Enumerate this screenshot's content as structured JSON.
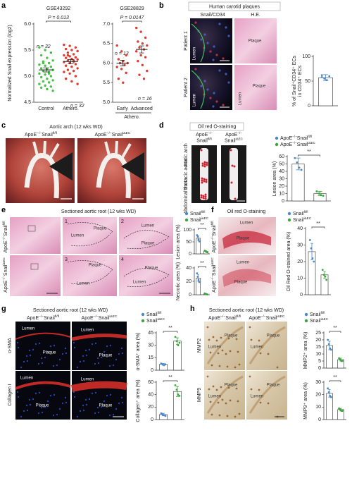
{
  "panel_letters": [
    "a",
    "b",
    "c",
    "d",
    "e",
    "f",
    "g",
    "h"
  ],
  "genotypes": {
    "apoe_fl": [
      "ApoE",
      "−/−",
      "Snail",
      "fl/fl"
    ],
    "apoe_iec": [
      "ApoE",
      "−/−",
      "Snail",
      "iΔEC"
    ],
    "snail_fl": [
      "Snail",
      "fl/fl"
    ],
    "snail_iec": [
      "Snail",
      "iΔEC"
    ]
  },
  "texts": {
    "human_plaques": "Human carotid plaques",
    "stain_snail": "Snail",
    "stain_cd34": "/CD34",
    "he": "H.E.",
    "patient1": "Patient 1",
    "patient2": "Patient 2",
    "lumen": "Lumen",
    "plaque": "Plaque",
    "aortic_arch_title": "Aortic arch (12 wks WD)",
    "oil_red": "Oil red O-staining",
    "aortic_arch": "Aortic arch",
    "thoracic": "Thoracic aorta",
    "abdominal": "Abdominal aorta",
    "root_title": "Sectioned aortic root (12 wks WD)",
    "sma": "α-SMA",
    "collagen": "Collagen I",
    "mmp2": "MMP2",
    "mmp9": "MMP9",
    "regions": [
      "1",
      "2",
      "3",
      "4"
    ]
  },
  "chart_data": [
    {
      "type": "dot",
      "title": "GSE43292",
      "annotation": "P = 0.013",
      "ylabel": "Normalized Snail expression (log2)",
      "categories": [
        "Control",
        "Athero."
      ],
      "n_labels": [
        "n = 32",
        "n = 32"
      ],
      "colors": [
        "#44c244",
        "#e03a2e"
      ],
      "points": [
        [
          5.55,
          5.5,
          5.45,
          5.4,
          5.35,
          5.3,
          5.28,
          5.25,
          5.22,
          5.2,
          5.18,
          5.15,
          5.13,
          5.12,
          5.1,
          5.08,
          5.05,
          5.03,
          5.0,
          4.98,
          4.95,
          4.92,
          4.9,
          4.88,
          4.85,
          4.82,
          4.8,
          4.78,
          4.75,
          4.72,
          5.25,
          5.05
        ],
        [
          5.6,
          5.58,
          5.55,
          5.52,
          5.5,
          5.48,
          5.45,
          5.42,
          5.4,
          5.38,
          5.36,
          5.35,
          5.33,
          5.32,
          5.3,
          5.28,
          5.27,
          5.25,
          5.23,
          5.2,
          5.18,
          5.15,
          5.12,
          5.1,
          5.08,
          5.05,
          5.0,
          4.95,
          4.9,
          4.85,
          5.4,
          5.3
        ]
      ],
      "means": [
        5.12,
        5.28
      ],
      "sems": [
        0.04,
        0.04
      ],
      "ylim": [
        4.5,
        6.0
      ],
      "yticks": [
        4.5,
        {
          "value": 5,
          "label": "5.0"
        },
        5.5,
        {
          "value": 6,
          "label": "6.0"
        }
      ]
    },
    {
      "type": "dot",
      "title": "GSE28829",
      "annotation": "P = 0.0147",
      "categories": [
        "Early",
        "Advanced"
      ],
      "group_label": "Athero.",
      "n_labels": [
        "n = 13",
        "n = 16"
      ],
      "colors": [
        "#e03a2e",
        "#e03a2e"
      ],
      "points": [
        [
          6.45,
          6.3,
          6.2,
          6.1,
          6.05,
          6.0,
          6.0,
          5.95,
          5.9,
          5.85,
          5.75,
          5.6,
          5.5
        ],
        [
          6.9,
          6.8,
          6.65,
          6.55,
          6.5,
          6.45,
          6.4,
          6.35,
          6.3,
          6.2,
          6.15,
          6.05,
          5.95,
          5.8,
          5.7,
          5.6
        ]
      ],
      "means": [
        6.0,
        6.35
      ],
      "sems": [
        0.07,
        0.09
      ],
      "ylim": [
        5,
        7
      ],
      "yticks": [
        {
          "value": 5,
          "label": "5.0"
        },
        5.5,
        {
          "value": 6,
          "label": "6.0"
        },
        6.5,
        {
          "value": 7,
          "label": "7.0"
        }
      ]
    },
    {
      "type": "bar",
      "ylabel": [
        "% of Snail⁺CD34⁺ ECs",
        "in CD34⁺ ECs"
      ],
      "values": [
        57
      ],
      "errors": [
        6
      ],
      "points": [
        [
          62,
          55,
          52,
          60,
          58
        ]
      ],
      "colors": [
        "#4b88c8"
      ],
      "ylim": [
        0,
        100
      ],
      "yticks": [
        0,
        50,
        100
      ]
    },
    {
      "type": "bar",
      "ylabel": "Lesion area (%)",
      "series_names": [
        [
          "ApoE",
          "−/−",
          "Snail",
          "fl/fl"
        ],
        [
          "ApoE",
          "−/−",
          "Snail",
          "iΔEC"
        ]
      ],
      "values": [
        50,
        10
      ],
      "errors": [
        8,
        3
      ],
      "points": [
        [
          58,
          52,
          45,
          42
        ],
        [
          13,
          10,
          8,
          7
        ]
      ],
      "colors": [
        "#4b88c8",
        "#3aa63a"
      ],
      "annotation": "**",
      "ylim": [
        0,
        60
      ],
      "yticks": [
        0,
        10,
        20,
        30,
        40,
        50,
        60
      ]
    },
    {
      "type": "bar",
      "ylabel": "Lesion area (%)",
      "series_names": [
        [
          "Snail",
          "fl/fl"
        ],
        [
          "Snail",
          "iΔEC"
        ]
      ],
      "values": [
        65,
        10
      ],
      "errors": [
        10,
        3
      ],
      "points": [
        [
          78,
          72,
          60,
          52
        ],
        [
          13,
          11,
          9,
          7
        ]
      ],
      "colors": [
        "#4b88c8",
        "#3aa63a"
      ],
      "annotation": "**",
      "ylim": [
        0,
        100
      ],
      "yticks": [
        0,
        50,
        100
      ]
    },
    {
      "type": "bar",
      "ylabel": "Necrotic area (%)",
      "values": [
        25,
        1
      ],
      "errors": [
        5,
        0.5
      ],
      "points": [
        [
          32,
          27,
          22,
          19
        ],
        [
          2,
          1,
          1,
          0.5
        ]
      ],
      "colors": [
        "#4b88c8",
        "#3aa63a"
      ],
      "annotation": "**",
      "ylim": [
        0,
        40
      ],
      "yticks": [
        0,
        20,
        40
      ]
    },
    {
      "type": "bar",
      "ylabel": "Oil Red O-stained area (%)",
      "series_names": [
        [
          "Snail",
          "fl/fl"
        ],
        [
          "Snail",
          "iΔEC"
        ]
      ],
      "values": [
        26,
        12
      ],
      "errors": [
        5,
        2
      ],
      "points": [
        [
          33,
          28,
          22,
          20
        ],
        [
          15,
          12,
          11,
          9
        ]
      ],
      "colors": [
        "#4b88c8",
        "#3aa63a"
      ],
      "annotation": "**",
      "ylim": [
        0,
        40
      ],
      "yticks": [
        0,
        10,
        20,
        30,
        40
      ]
    },
    {
      "type": "bar",
      "ylabel": "α-SMA⁺ area (%)",
      "series_names": [
        [
          "Snail",
          "fl/fl"
        ],
        [
          "Snail",
          "iΔEC"
        ]
      ],
      "values": [
        7,
        35
      ],
      "errors": [
        1,
        4
      ],
      "points": [
        [
          8,
          7,
          6,
          7
        ],
        [
          40,
          35,
          30,
          33
        ]
      ],
      "colors": [
        "#4b88c8",
        "#3aa63a"
      ],
      "annotation": "**",
      "ylim": [
        0,
        45
      ],
      "yticks": [
        0,
        15,
        30,
        45
      ]
    },
    {
      "type": "bar",
      "ylabel": "Collagen⁺ area (%)",
      "values": [
        8,
        45
      ],
      "errors": [
        2,
        8
      ],
      "points": [
        [
          10,
          8,
          7,
          6
        ],
        [
          55,
          48,
          40,
          38
        ]
      ],
      "colors": [
        "#4b88c8",
        "#3aa63a"
      ],
      "annotation": "**",
      "ylim": [
        0,
        60
      ],
      "yticks": [
        0,
        20,
        40,
        60
      ]
    },
    {
      "type": "bar",
      "ylabel": "MMP2⁺ area (%)",
      "series_names": [
        [
          "Snail",
          "fl/fl"
        ],
        [
          "Snail",
          "iΔEC"
        ]
      ],
      "values": [
        16,
        6
      ],
      "errors": [
        3,
        1
      ],
      "points": [
        [
          20,
          17,
          14,
          13
        ],
        [
          7,
          6,
          5,
          5
        ]
      ],
      "colors": [
        "#4b88c8",
        "#3aa63a"
      ],
      "annotation": "**",
      "ylim": [
        0,
        25
      ],
      "yticks": [
        0,
        5,
        10,
        15,
        20,
        25
      ]
    },
    {
      "type": "bar",
      "ylabel": "MMP9⁺ area (%)",
      "values": [
        21,
        8
      ],
      "errors": [
        3,
        1
      ],
      "points": [
        [
          25,
          22,
          19,
          18
        ],
        [
          9,
          8,
          7,
          7
        ]
      ],
      "colors": [
        "#4b88c8",
        "#3aa63a"
      ],
      "annotation": "**",
      "ylim": [
        0,
        30
      ],
      "yticks": [
        0,
        10,
        20,
        30
      ]
    }
  ]
}
